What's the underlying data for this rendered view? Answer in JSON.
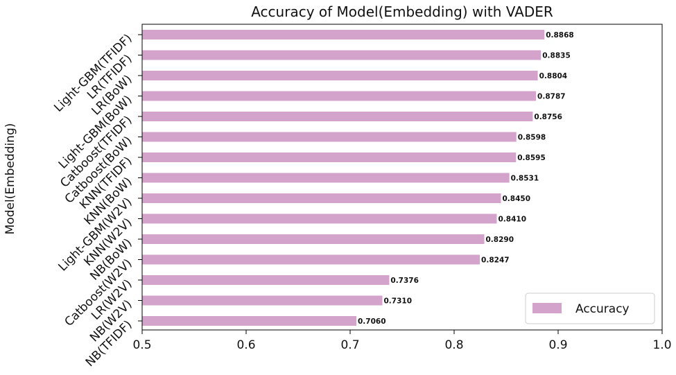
{
  "chart_data": {
    "type": "bar",
    "orientation": "horizontal",
    "title": "Accuracy of Model(Embedding) with VADER",
    "xlabel": "",
    "ylabel": "Model(Embedding)",
    "xlim": [
      0.5,
      1.0
    ],
    "xticks": [
      0.5,
      0.6,
      0.7,
      0.8,
      0.9,
      1.0
    ],
    "xtick_labels": [
      "0.5",
      "0.6",
      "0.7",
      "0.8",
      "0.9",
      "1.0"
    ],
    "grid": false,
    "legend": {
      "placement": "bottom-right",
      "entries": [
        "Accuracy"
      ]
    },
    "bar_color": "#d4a3cc",
    "categories": [
      "Light-GBM(TFIDF)",
      "LR(TFIDF)",
      "LR(BoW)",
      "Light-GBM(BoW)",
      "Catboost(TFIDF)",
      "Catboost(BoW)",
      "KNN(TFIDF)",
      "KNN(BoW)",
      "Light-GBM(W2V)",
      "KNN(W2V)",
      "NB(BoW)",
      "Catboost(W2V)",
      "LR(W2V)",
      "NB(W2V)",
      "NB(TFIDF)"
    ],
    "series": [
      {
        "name": "Accuracy",
        "values": [
          0.8868,
          0.8835,
          0.8804,
          0.8787,
          0.8756,
          0.8598,
          0.8595,
          0.8531,
          0.845,
          0.841,
          0.829,
          0.8247,
          0.7376,
          0.731,
          0.706
        ]
      }
    ],
    "data_labels": [
      "0.8868",
      "0.8835",
      "0.8804",
      "0.8787",
      "0.8756",
      "0.8598",
      "0.8595",
      "0.8531",
      "0.8450",
      "0.8410",
      "0.8290",
      "0.8247",
      "0.7376",
      "0.7310",
      "0.7060"
    ]
  }
}
